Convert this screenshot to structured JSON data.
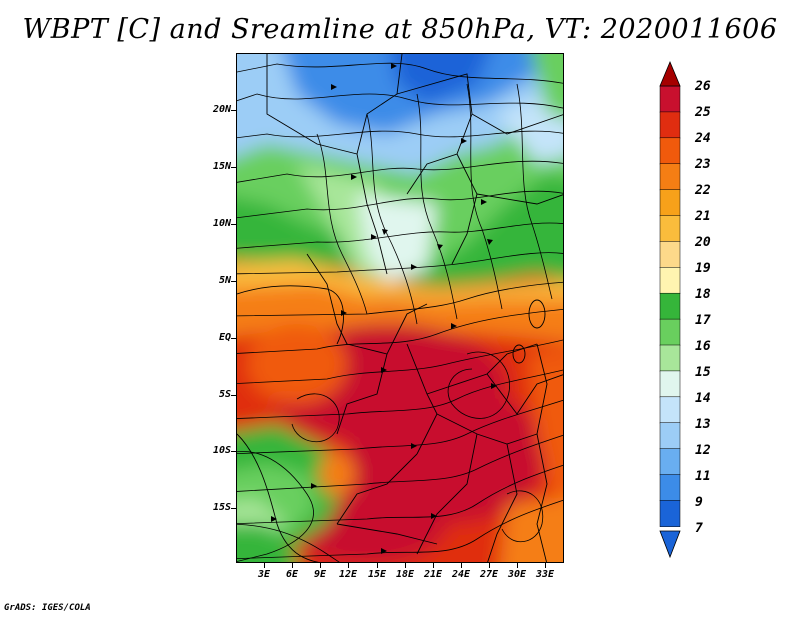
{
  "title": "WBPT [C] and Sreamline at 850hPa, VT: 2020011606",
  "credit": "GrADS: IGES/COLA",
  "map": {
    "lat_ticks": [
      "20N",
      "15N",
      "10N",
      "5N",
      "EQ",
      "5S",
      "10S",
      "15S"
    ],
    "lon_ticks": [
      "3E",
      "6E",
      "9E",
      "12E",
      "15E",
      "18E",
      "21E",
      "24E",
      "27E",
      "30E",
      "33E"
    ],
    "lat_range": [
      -20,
      25
    ],
    "lon_range": [
      0,
      35
    ]
  },
  "colorbar": {
    "levels": [
      "26",
      "25",
      "24",
      "23",
      "22",
      "21",
      "20",
      "19",
      "18",
      "17",
      "16",
      "15",
      "14",
      "13",
      "12",
      "11",
      "9",
      "7"
    ],
    "colors": [
      "#a50000",
      "#c8102e",
      "#e02d10",
      "#f05a0c",
      "#f57e14",
      "#f7a11a",
      "#fabc3c",
      "#fdd98a",
      "#fff4b0",
      "#35b53a",
      "#69cf5e",
      "#a8e69a",
      "#e0f6ee",
      "#c4e4fa",
      "#9ccdf6",
      "#69aef0",
      "#3c8ce8",
      "#1a64d8"
    ]
  }
}
